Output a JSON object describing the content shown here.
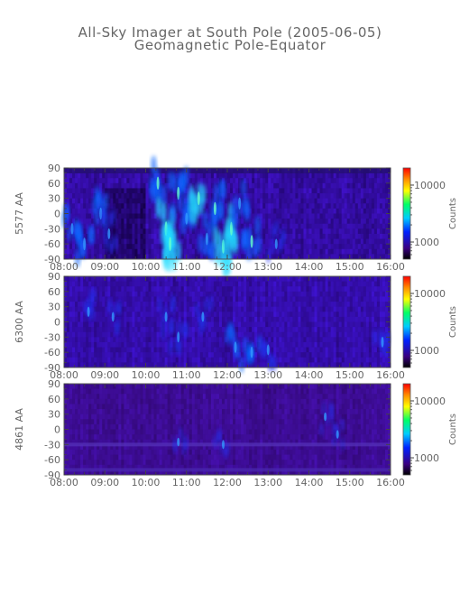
{
  "title": "All-Sky Imager at South Pole (2005-06-05)",
  "subtitle": "Geomagnetic Pole-Equator",
  "chart_data": [
    {
      "type": "heatmap",
      "ylabel": "5577 AA",
      "x_ticks": [
        "08:00",
        "09:00",
        "10:00",
        "11:00",
        "12:00",
        "13:00",
        "14:00",
        "15:00",
        "16:00"
      ],
      "xlim": [
        "08:00",
        "16:00"
      ],
      "y_ticks": [
        90,
        60,
        30,
        0,
        -30,
        -60,
        -90
      ],
      "ylim": [
        -90,
        90
      ],
      "colorbar": {
        "label": "Counts",
        "scale": "log",
        "ticks": [
          10000,
          1000
        ],
        "tick_labels": [
          "10000",
          "1000"
        ]
      },
      "bright_events": [
        {
          "t": 8.2,
          "y": -30,
          "level": 0.55
        },
        {
          "t": 8.5,
          "y": -60,
          "level": 0.65
        },
        {
          "t": 8.9,
          "y": 0,
          "level": 0.6
        },
        {
          "t": 9.1,
          "y": -40,
          "level": 0.5
        },
        {
          "t": 10.3,
          "y": 60,
          "level": 0.7
        },
        {
          "t": 10.5,
          "y": -30,
          "level": 0.85
        },
        {
          "t": 10.6,
          "y": -60,
          "level": 0.8
        },
        {
          "t": 10.8,
          "y": 40,
          "level": 0.7
        },
        {
          "t": 11.0,
          "y": -10,
          "level": 0.6
        },
        {
          "t": 11.3,
          "y": 30,
          "level": 0.75
        },
        {
          "t": 11.5,
          "y": -50,
          "level": 0.65
        },
        {
          "t": 11.7,
          "y": 10,
          "level": 0.7
        },
        {
          "t": 11.9,
          "y": -65,
          "level": 0.8
        },
        {
          "t": 12.1,
          "y": -30,
          "level": 0.75
        },
        {
          "t": 12.3,
          "y": 20,
          "level": 0.6
        },
        {
          "t": 12.6,
          "y": -55,
          "level": 0.7
        },
        {
          "t": 13.2,
          "y": -60,
          "level": 0.45
        }
      ]
    },
    {
      "type": "heatmap",
      "ylabel": "6300 AA",
      "x_ticks": [
        "08:00",
        "09:00",
        "10:00",
        "11:00",
        "12:00",
        "13:00",
        "14:00",
        "15:00",
        "16:00"
      ],
      "xlim": [
        "08:00",
        "16:00"
      ],
      "y_ticks": [
        90,
        60,
        30,
        0,
        -30,
        -60,
        -90
      ],
      "ylim": [
        -90,
        90
      ],
      "colorbar": {
        "label": "Counts",
        "scale": "log",
        "ticks": [
          10000,
          1000
        ],
        "tick_labels": [
          "10000",
          "1000"
        ]
      },
      "bright_events": [
        {
          "t": 8.6,
          "y": 20,
          "level": 0.45
        },
        {
          "t": 9.2,
          "y": 10,
          "level": 0.4
        },
        {
          "t": 10.5,
          "y": 10,
          "level": 0.45
        },
        {
          "t": 10.8,
          "y": -30,
          "level": 0.5
        },
        {
          "t": 11.4,
          "y": 10,
          "level": 0.45
        },
        {
          "t": 12.2,
          "y": -50,
          "level": 0.55
        },
        {
          "t": 12.6,
          "y": -60,
          "level": 0.55
        },
        {
          "t": 13.0,
          "y": -55,
          "level": 0.5
        },
        {
          "t": 15.8,
          "y": -40,
          "level": 0.5
        }
      ]
    },
    {
      "type": "heatmap",
      "ylabel": "4861 AA",
      "x_ticks": [
        "08:00",
        "09:00",
        "10:00",
        "11:00",
        "12:00",
        "13:00",
        "14:00",
        "15:00",
        "16:00"
      ],
      "xlim": [
        "08:00",
        "16:00"
      ],
      "y_ticks": [
        90,
        60,
        30,
        0,
        -30,
        -60,
        -90
      ],
      "ylim": [
        -90,
        90
      ],
      "colorbar": {
        "label": "Counts",
        "scale": "log",
        "ticks": [
          10000,
          1000
        ],
        "tick_labels": [
          "10000",
          "1000"
        ]
      },
      "bright_events": [
        {
          "t": 10.8,
          "y": -25,
          "level": 0.3
        },
        {
          "t": 11.9,
          "y": -30,
          "level": 0.35
        },
        {
          "t": 14.4,
          "y": 25,
          "level": 0.3
        },
        {
          "t": 14.7,
          "y": -10,
          "level": 0.3
        }
      ]
    }
  ]
}
